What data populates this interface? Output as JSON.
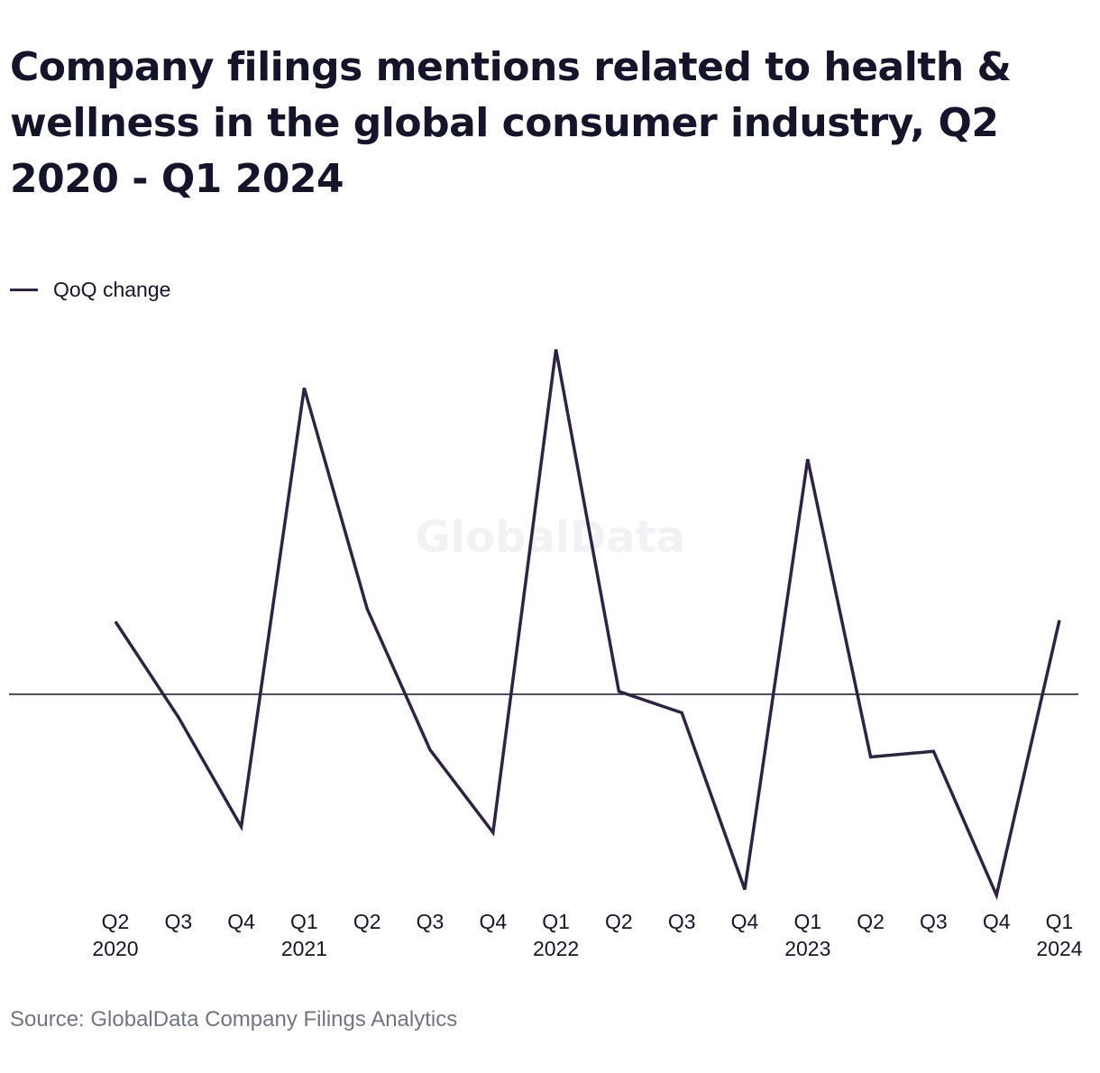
{
  "title": "Company filings mentions related to health & wellness in the global consumer industry, Q2 2020 - Q1 2024",
  "source": "Source: GlobalData Company Filings Analytics",
  "watermark": "GlobalData",
  "colors": {
    "line": "#2e2345",
    "zero_line": "#16142a",
    "text": "#16142a",
    "source_text": "#747383",
    "watermark": "#f2f2f4"
  },
  "chart_data": {
    "type": "line",
    "title": "Company filings mentions related to health & wellness in the global consumer industry, Q2 2020 - Q1 2024",
    "xlabel": "",
    "ylabel": "",
    "categories": [
      [
        "Q2",
        "2020"
      ],
      [
        "Q3",
        ""
      ],
      [
        "Q4",
        ""
      ],
      [
        "Q1",
        "2021"
      ],
      [
        "Q2",
        ""
      ],
      [
        "Q3",
        ""
      ],
      [
        "Q4",
        ""
      ],
      [
        "Q1",
        "2022"
      ],
      [
        "Q2",
        ""
      ],
      [
        "Q3",
        ""
      ],
      [
        "Q4",
        ""
      ],
      [
        "Q1",
        "2023"
      ],
      [
        "Q2",
        ""
      ],
      [
        "Q3",
        ""
      ],
      [
        "Q4",
        ""
      ],
      [
        "Q1",
        "2024"
      ]
    ],
    "series": [
      {
        "name": "QoQ change",
        "values": [
          0.255,
          -0.08,
          -0.465,
          1.075,
          0.3,
          -0.195,
          -0.485,
          1.21,
          0.01,
          -0.065,
          -0.685,
          0.825,
          -0.22,
          -0.2,
          -0.705,
          0.26
        ]
      }
    ],
    "ylim": [
      -0.705,
      1.21
    ],
    "y_axis_visible": false,
    "zero_line": true,
    "grid": false,
    "legend": "top-left"
  }
}
